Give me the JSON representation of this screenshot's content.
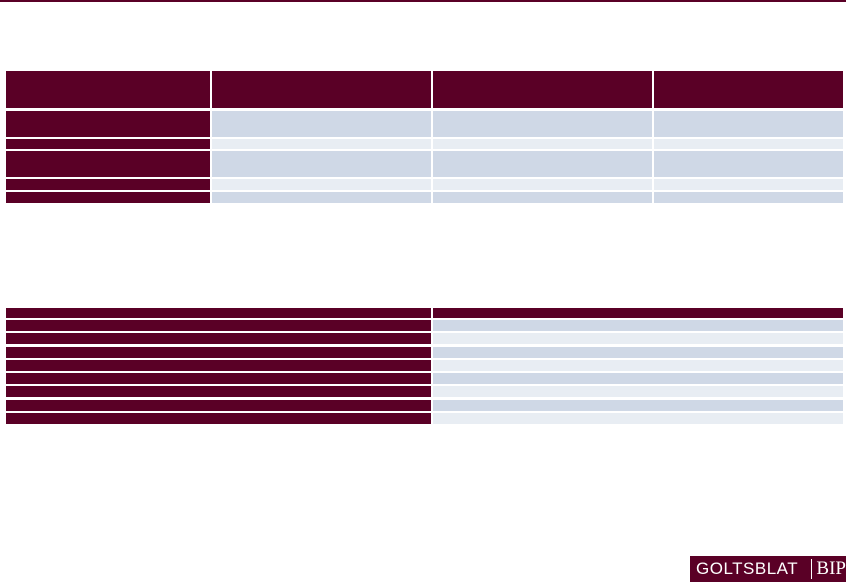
{
  "logo": {
    "name": "GOLTSBLAT",
    "suffix": "BIP"
  }
}
